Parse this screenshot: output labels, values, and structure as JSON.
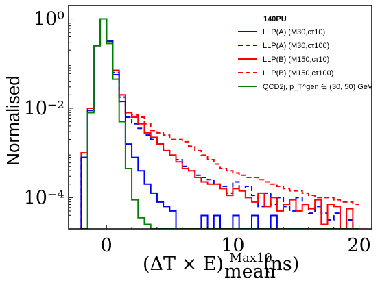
{
  "chart_data": {
    "type": "line",
    "step": true,
    "xlabel": "(ΔT × E)",
    "xlabel_sup": "Max10",
    "xlabel_sub": "mean",
    "xlabel_unit": "(ns)",
    "ylabel": "Normalised",
    "xlim": [
      -3,
      21
    ],
    "ylim_log10": [
      -4.7,
      0.3
    ],
    "y_log": true,
    "x_ticks": [
      0,
      10,
      20
    ],
    "x_tick_labels": [
      "0",
      "10",
      "20"
    ],
    "y_ticks": [
      "10⁰",
      "10⁻²",
      "10⁻⁴"
    ],
    "y_tick_log10": [
      0,
      -2,
      -4
    ],
    "legend_title": "140PU",
    "legend_position": "top-right",
    "bins": [
      -2,
      -1.5,
      -1,
      -0.5,
      0,
      0.5,
      1,
      1.5,
      2,
      2.5,
      3,
      3.5,
      4,
      4.5,
      5,
      5.5,
      6,
      6.5,
      7,
      7.5,
      8,
      8.5,
      9,
      9.5,
      10,
      10.5,
      11,
      11.5,
      12,
      12.5,
      13,
      13.5,
      14,
      14.5,
      15,
      15.5,
      16,
      16.5,
      17,
      17.5,
      18,
      18.5,
      19,
      19.5,
      20
    ],
    "series": [
      {
        "name": "LLP(A) (M30,cτ10)",
        "color": "#0000ff",
        "dash": "solid",
        "log10_values": [
          -3.1,
          -2.05,
          -0.6,
          0.0,
          -0.5,
          -1.25,
          -1.85,
          -2.8,
          -3.1,
          -3.4,
          -3.7,
          -3.9,
          -4.1,
          -4.2,
          -4.3,
          -4.7,
          -4.7,
          -4.7,
          -4.7,
          -4.4,
          -4.7,
          -4.4,
          -4.7,
          -4.7,
          -4.4,
          -4.7,
          -4.7,
          -4.4,
          -4.7,
          -4.7,
          -4.4,
          -4.7,
          -4.7,
          -4.7,
          -4.7,
          -4.7,
          -4.7,
          -4.7,
          -4.7,
          -4.7,
          -4.7,
          -4.7,
          -4.7,
          -4.7
        ]
      },
      {
        "name": "LLP(A) (M30,cτ100)",
        "color": "#0000ff",
        "dash": "dashed",
        "log10_values": [
          -3.1,
          -2.05,
          -0.6,
          0.0,
          -0.5,
          -1.2,
          -1.75,
          -2.2,
          -2.35,
          -2.45,
          -2.6,
          -2.7,
          -2.8,
          -2.95,
          -3.05,
          -3.15,
          -3.3,
          -3.4,
          -3.5,
          -3.55,
          -3.6,
          -3.7,
          -3.75,
          -3.9,
          -3.65,
          -3.85,
          -3.75,
          -3.95,
          -4.2,
          -3.9,
          -4.15,
          -4.0,
          -4.2,
          -4.3,
          -4.0,
          -4.15,
          -4.35,
          -4.2,
          -4.35,
          -4.5,
          -4.35,
          -4.7,
          -4.5,
          -4.7
        ]
      },
      {
        "name": "LLP(B) (M150,cτ10)",
        "color": "#ff0000",
        "dash": "solid",
        "log10_values": [
          -3.0,
          -2.0,
          -0.6,
          0.0,
          -0.5,
          -1.15,
          -1.7,
          -2.1,
          -2.2,
          -2.35,
          -2.55,
          -2.65,
          -2.8,
          -2.95,
          -3.05,
          -3.2,
          -3.35,
          -3.4,
          -3.55,
          -3.65,
          -3.7,
          -3.7,
          -3.8,
          -3.95,
          -3.8,
          -3.85,
          -4.0,
          -4.1,
          -3.9,
          -4.2,
          -4.0,
          -4.3,
          -4.15,
          -4.05,
          -4.3,
          -4.15,
          -4.25,
          -4.05,
          -4.6,
          -4.15,
          -4.2,
          -4.7,
          -4.25,
          -4.7
        ]
      },
      {
        "name": "LLP(B) (M150,cτ100)",
        "color": "#ff0000",
        "dash": "dashed",
        "log10_values": [
          -3.0,
          -2.0,
          -0.6,
          0.0,
          -0.5,
          -1.15,
          -1.7,
          -2.1,
          -2.15,
          -2.2,
          -2.35,
          -2.5,
          -2.55,
          -2.6,
          -2.7,
          -2.7,
          -2.75,
          -2.85,
          -2.95,
          -3.05,
          -3.15,
          -3.25,
          -3.35,
          -3.4,
          -3.45,
          -3.5,
          -3.55,
          -3.55,
          -3.6,
          -3.65,
          -3.7,
          -3.75,
          -3.8,
          -3.85,
          -3.85,
          -3.9,
          -3.95,
          -4.0,
          -4.0,
          -4.0,
          -4.05,
          -4.1,
          -4.1,
          -4.15
        ]
      },
      {
        "name": "QCD2j, p_T^gen ∈ (30, 50) GeV",
        "color": "#008000",
        "dash": "solid",
        "log10_values": [
          -4.7,
          -2.1,
          -0.6,
          0.0,
          -0.55,
          -1.35,
          -2.3,
          -3.35,
          -4.05,
          -4.45,
          -4.6,
          -4.7,
          -4.7,
          -4.7,
          -4.7,
          -4.7,
          -4.7,
          -4.7,
          -4.7,
          -4.7,
          -4.7,
          -4.7,
          -4.7,
          -4.7,
          -4.7,
          -4.7,
          -4.7,
          -4.7,
          -4.7,
          -4.7,
          -4.7,
          -4.7,
          -4.7,
          -4.7,
          -4.7,
          -4.7,
          -4.7,
          -4.7,
          -4.7,
          -4.7,
          -4.7,
          -4.7,
          -4.7,
          -4.7
        ]
      }
    ]
  }
}
